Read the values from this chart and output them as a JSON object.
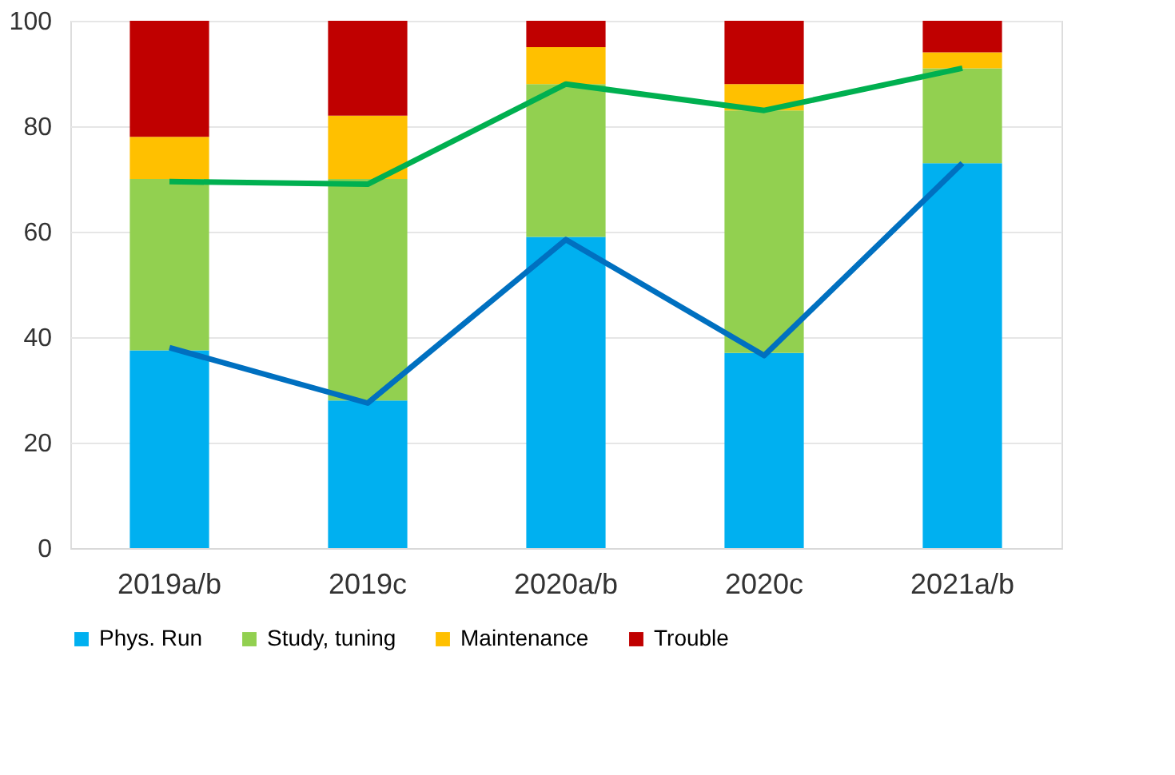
{
  "chart_data": {
    "type": "bar",
    "stacked": true,
    "categories": [
      "2019a/b",
      "2019c",
      "2020a/b",
      "2020c",
      "2021a/b"
    ],
    "series": [
      {
        "name": "Phys. Run",
        "color": "#00b0f0",
        "values": [
          37.5,
          28,
          59,
          37,
          73
        ]
      },
      {
        "name": "Study, tuning",
        "color": "#92d050",
        "values": [
          32.5,
          42,
          29,
          46,
          18
        ]
      },
      {
        "name": "Maintenance",
        "color": "#ffc000",
        "values": [
          8,
          12,
          7,
          5,
          3
        ]
      },
      {
        "name": "Trouble",
        "color": "#c00000",
        "values": [
          22,
          18,
          5,
          12,
          6
        ]
      },
      {
        "type": "line",
        "color": "#00b050",
        "values": [
          69.5,
          69,
          88,
          83,
          91
        ]
      },
      {
        "type": "line",
        "color": "#0070c0",
        "values": [
          38,
          27.5,
          58.5,
          36.5,
          73
        ]
      }
    ],
    "ylim": [
      0,
      100
    ],
    "yticks": [
      0,
      20,
      40,
      60,
      80,
      100
    ],
    "grid": "y",
    "legend": "bottom"
  }
}
